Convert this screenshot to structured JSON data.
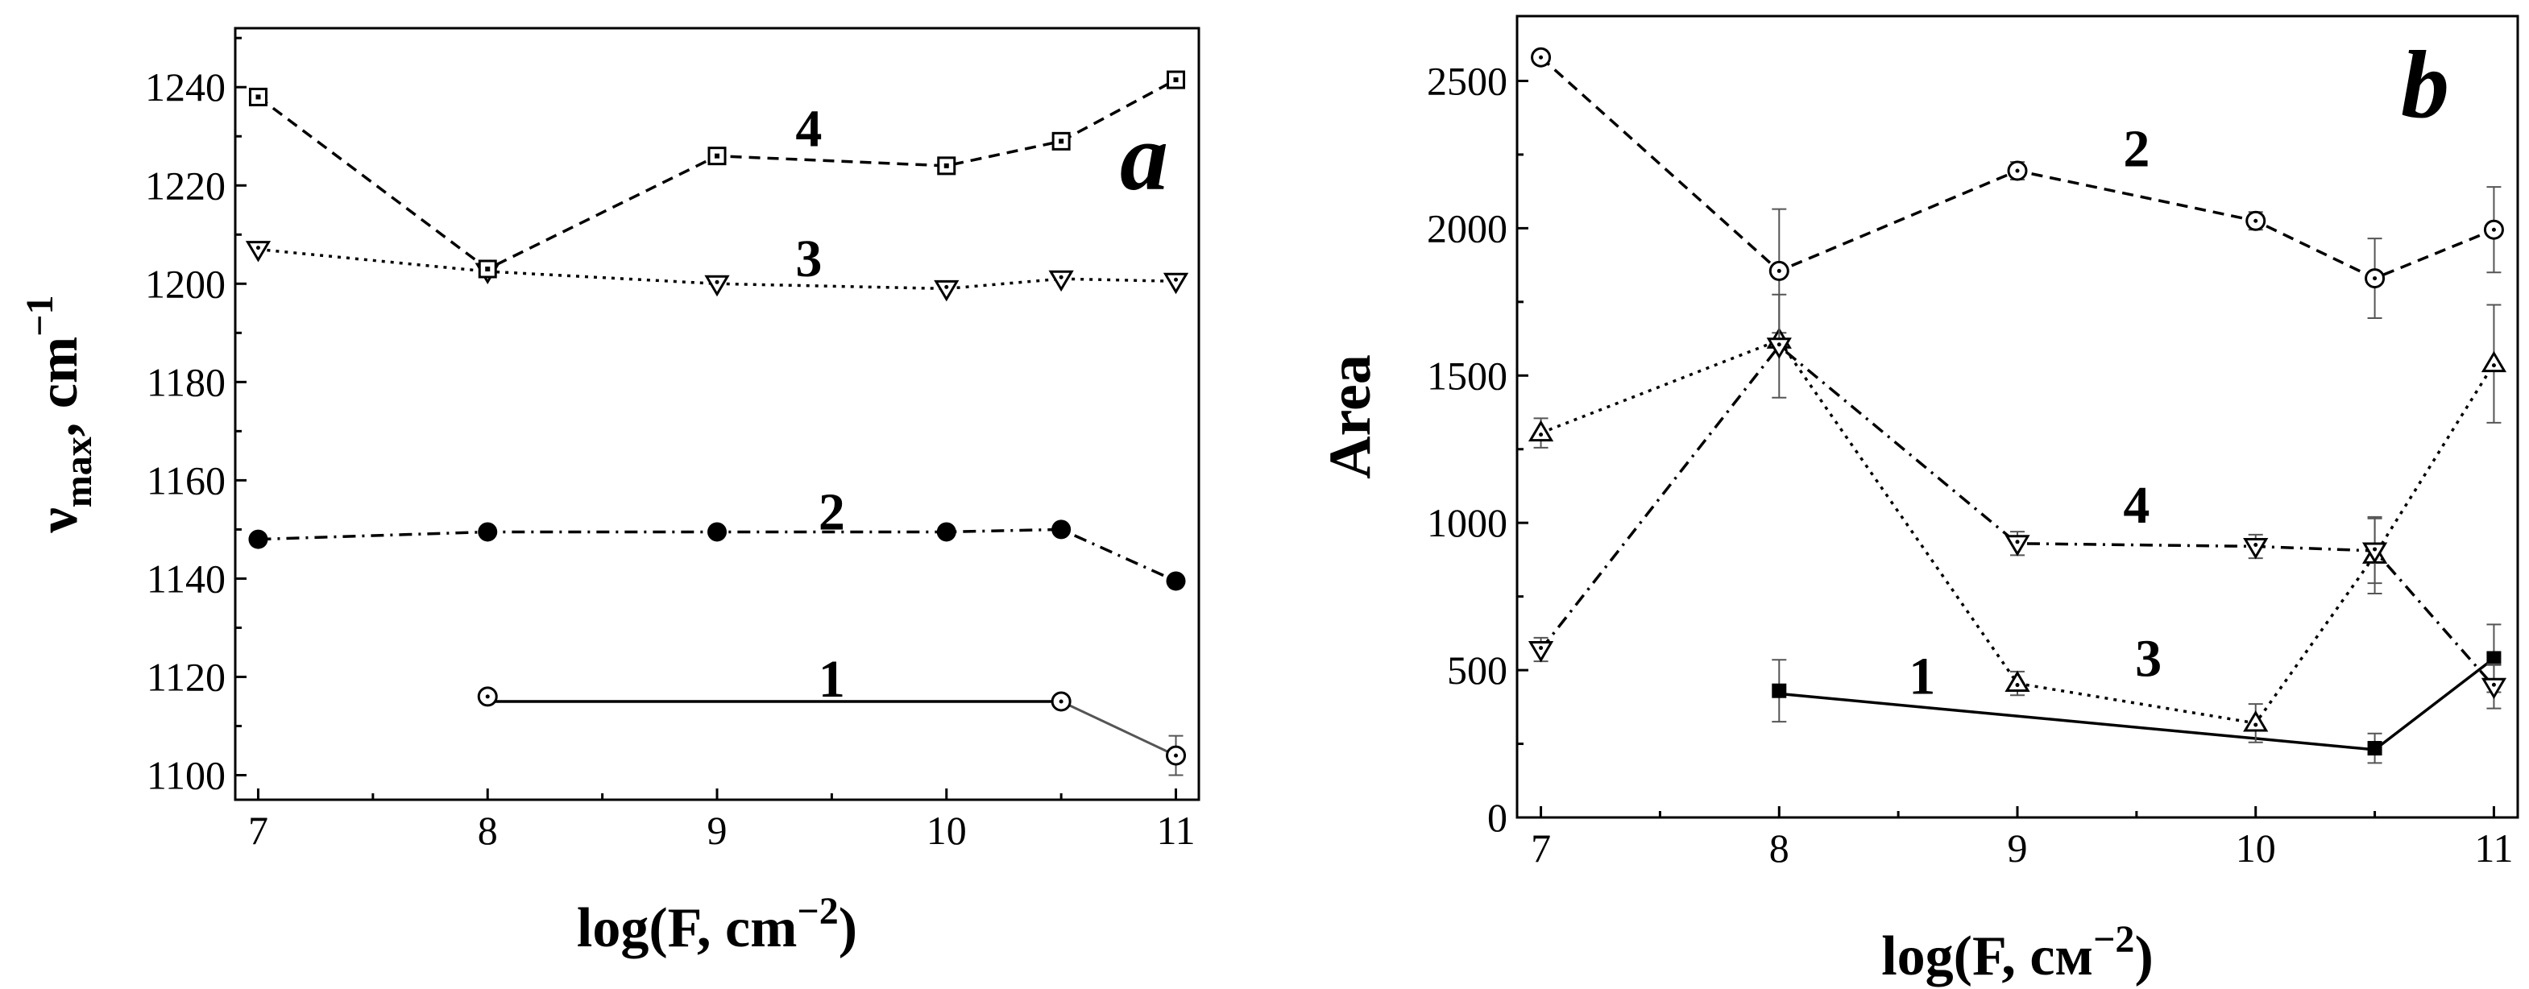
{
  "chart_data": [
    {
      "panel": "a",
      "type": "line",
      "xlabel": "log(F, cm⁻²)",
      "xlabel_main": "log(F, cm",
      "xlabel_sup": "−2",
      "xlabel_tail": ")",
      "ylabel_nu": "ν",
      "ylabel_sub": "max",
      "ylabel_tail": ", cm",
      "ylabel_sup": "−1",
      "xlim": [
        6.9,
        11.1
      ],
      "ylim": [
        1095,
        1252
      ],
      "xticks": [
        7,
        8,
        9,
        10,
        11
      ],
      "xtick_labels": [
        "7",
        "8",
        "9",
        "10",
        "11"
      ],
      "yticks": [
        1100,
        1120,
        1140,
        1160,
        1180,
        1200,
        1220,
        1240
      ],
      "ytick_labels": [
        "1100",
        "1120",
        "1140",
        "1160",
        "1180",
        "1200",
        "1220",
        "1240"
      ],
      "series": [
        {
          "label": "1",
          "marker": "circle-dot",
          "line": "solid",
          "color": "#000000",
          "x": [
            8,
            10.5
          ],
          "y": [
            1115,
            1115
          ],
          "points": [
            {
              "x": 8,
              "y": 1116
            },
            {
              "x": 10.5,
              "y": 1115
            },
            {
              "x": 11,
              "y": 1104,
              "err": 4
            }
          ],
          "extra_line": {
            "x": [
              10.5,
              11
            ],
            "y": [
              1115,
              1104
            ],
            "color": "#555555"
          }
        },
        {
          "label": "2",
          "marker": "filled-circle",
          "line": "dashdot",
          "color": "#000000",
          "x": [
            7,
            8,
            9,
            10,
            10.5,
            11
          ],
          "y": [
            1148,
            1149.5,
            1149.5,
            1149.5,
            1150,
            1139.5
          ]
        },
        {
          "label": "3",
          "marker": "triangle-down-dot",
          "line": "dotted",
          "color": "#000000",
          "x": [
            7,
            8,
            9,
            10,
            10.5,
            11
          ],
          "y": [
            1207,
            1202.5,
            1200,
            1199,
            1201,
            1200.5
          ]
        },
        {
          "label": "4",
          "marker": "square-dot",
          "line": "dashed",
          "color": "#000000",
          "x": [
            7,
            8,
            9,
            10,
            10.5,
            11
          ],
          "y": [
            1238,
            1203,
            1226,
            1224,
            1229,
            1241.5
          ]
        }
      ],
      "annotations": [
        {
          "text": "4",
          "x": 9.4,
          "y": 1228
        },
        {
          "text": "3",
          "x": 9.4,
          "y": 1201.5
        },
        {
          "text": "2",
          "x": 9.5,
          "y": 1150
        },
        {
          "text": "1",
          "x": 9.5,
          "y": 1116
        }
      ]
    },
    {
      "panel": "b",
      "type": "line",
      "xlabel": "log(F, cм⁻²)",
      "xlabel_main": "log(F, cм",
      "xlabel_sup": "−2",
      "xlabel_tail": ")",
      "ylabel": "Area",
      "xlim": [
        6.9,
        11.1
      ],
      "ylim": [
        0,
        2720
      ],
      "xticks": [
        7,
        8,
        9,
        10,
        11
      ],
      "xtick_labels": [
        "7",
        "8",
        "9",
        "10",
        "11"
      ],
      "yticks": [
        0,
        500,
        1000,
        1500,
        2000,
        2500
      ],
      "ytick_labels": [
        "0",
        "500",
        "1000",
        "1500",
        "2000",
        "2500"
      ],
      "series": [
        {
          "label": "1",
          "marker": "filled-square",
          "line": "solid",
          "color": "#000000",
          "x": [
            8,
            10.5,
            11
          ],
          "y": [
            420,
            230,
            540
          ],
          "points": [
            {
              "x": 8,
              "y": 430,
              "err": 105
            },
            {
              "x": 10.5,
              "y": 235,
              "err": 50
            },
            {
              "x": 11,
              "y": 540,
              "err": 115
            }
          ]
        },
        {
          "label": "2",
          "marker": "circle-dot",
          "line": "dashed",
          "color": "#000000",
          "x": [
            7,
            8,
            9,
            10,
            10.5,
            11
          ],
          "y": [
            2580,
            1855,
            2195,
            2025,
            1830,
            1995
          ],
          "errs": [
            0,
            210,
            30,
            30,
            135,
            145
          ]
        },
        {
          "label": "3",
          "marker": "triangle-up-dot",
          "line": "dotted",
          "color": "#000000",
          "x": [
            7,
            8,
            9,
            10,
            10.5,
            11
          ],
          "y": [
            1305,
            1620,
            455,
            320,
            890,
            1540
          ],
          "errs": [
            50,
            0,
            40,
            65,
            130,
            200
          ]
        },
        {
          "label": "4",
          "marker": "triangle-down-dot",
          "line": "dashdot",
          "color": "#000000",
          "x": [
            7,
            8,
            9,
            10,
            10.5,
            11
          ],
          "y": [
            570,
            1600,
            930,
            920,
            905,
            445
          ],
          "errs": [
            40,
            175,
            40,
            40,
            110,
            75
          ]
        }
      ],
      "annotations": [
        {
          "text": "2",
          "x": 9.5,
          "y": 2210
        },
        {
          "text": "4",
          "x": 9.5,
          "y": 1000
        },
        {
          "text": "3",
          "x": 9.55,
          "y": 480
        },
        {
          "text": "1",
          "x": 8.6,
          "y": 420
        }
      ]
    }
  ]
}
